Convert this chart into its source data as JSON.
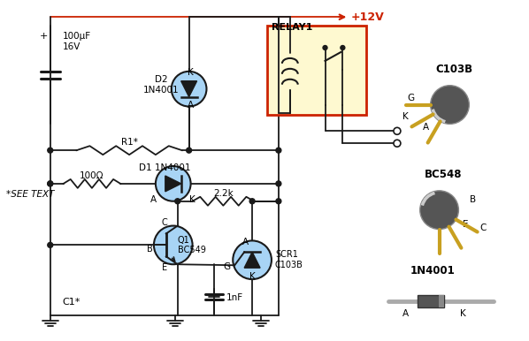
{
  "bg_color": "#ffffff",
  "wire_color": "#1a1a1a",
  "red_wire": "#cc2200",
  "component_fill": "#a8d4f5",
  "component_outline": "#1a1a1a",
  "relay_fill": "#fef9d0",
  "relay_outline": "#cc2200",
  "gold_pin": "#c8a020",
  "dark_body": "#555555",
  "diode_gray": "#999999",
  "diode_dark": "#444444",
  "labels": {
    "vcc": "+12V",
    "relay": "RELAY1",
    "cap1_text": "100μF\n16V",
    "cap1_label": "C1*",
    "cap2": "1nF",
    "d2": "D2\n1N4001",
    "d1": "D1 1N4001",
    "r1": "R1*",
    "r_100": "100Ω",
    "r_22k": "2.2k",
    "q1_label": "Q1\nBC549",
    "scr1_label": "SCR1\nC103B",
    "see_text": "*SEE TEXT",
    "c103b_title": "C103B",
    "bc548_title": "BC548",
    "diode_title": "1N4001"
  }
}
